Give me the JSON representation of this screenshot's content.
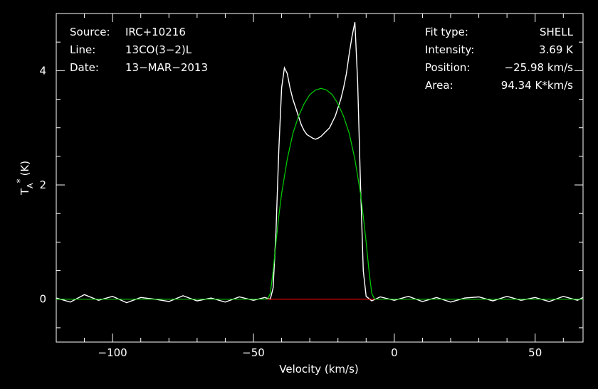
{
  "chart_data": {
    "type": "line",
    "xlabel": "Velocity (km/s)",
    "ylabel": "T",
    "ylabel_sub": "A",
    "ylabel_sup": "*",
    "ylabel_unit": "(K)",
    "xlim": [
      -120,
      67
    ],
    "ylim": [
      -0.75,
      5.0
    ],
    "xticks": [
      -100,
      -50,
      0,
      50
    ],
    "yticks": [
      0,
      2,
      4
    ],
    "x_tick_labels": [
      "−100",
      "−50",
      "0",
      "50"
    ],
    "y_tick_labels": [
      "0",
      "2",
      "4"
    ],
    "grid": false,
    "info_left": [
      {
        "label": "Source:",
        "value": "IRC+10216"
      },
      {
        "label": "Line:",
        "value": "13CO(3−2)L"
      },
      {
        "label": "Date:",
        "value": "13−MAR−2013"
      }
    ],
    "info_right": [
      {
        "label": "Fit type:",
        "value": "SHELL"
      },
      {
        "label": "Intensity:",
        "value": "3.69 K"
      },
      {
        "label": "Position:",
        "value": "−25.98 km/s"
      },
      {
        "label": "Area:",
        "value": "94.34 K*km/s"
      }
    ],
    "series": [
      {
        "color": "#ffffff",
        "points": [
          [
            -120,
            0.02
          ],
          [
            -115,
            -0.05
          ],
          [
            -110,
            0.08
          ],
          [
            -105,
            -0.02
          ],
          [
            -100,
            0.05
          ],
          [
            -95,
            -0.06
          ],
          [
            -90,
            0.03
          ],
          [
            -85,
            0.0
          ],
          [
            -80,
            -0.04
          ],
          [
            -75,
            0.06
          ],
          [
            -70,
            -0.03
          ],
          [
            -65,
            0.02
          ],
          [
            -60,
            -0.05
          ],
          [
            -55,
            0.04
          ],
          [
            -50,
            -0.02
          ],
          [
            -46,
            0.03
          ],
          [
            -44,
            0.0
          ],
          [
            -43,
            0.2
          ],
          [
            -42,
            1.2
          ],
          [
            -41,
            2.6
          ],
          [
            -40,
            3.7
          ],
          [
            -39,
            4.05
          ],
          [
            -38,
            3.95
          ],
          [
            -37,
            3.7
          ],
          [
            -36,
            3.5
          ],
          [
            -35,
            3.35
          ],
          [
            -34,
            3.2
          ],
          [
            -33,
            3.05
          ],
          [
            -32,
            2.95
          ],
          [
            -31,
            2.88
          ],
          [
            -30,
            2.85
          ],
          [
            -29,
            2.82
          ],
          [
            -28,
            2.8
          ],
          [
            -27,
            2.82
          ],
          [
            -26,
            2.85
          ],
          [
            -25,
            2.9
          ],
          [
            -24,
            2.95
          ],
          [
            -23,
            3.0
          ],
          [
            -22,
            3.1
          ],
          [
            -21,
            3.2
          ],
          [
            -20,
            3.35
          ],
          [
            -19,
            3.5
          ],
          [
            -18,
            3.7
          ],
          [
            -17,
            3.95
          ],
          [
            -16,
            4.3
          ],
          [
            -15,
            4.6
          ],
          [
            -14,
            4.85
          ],
          [
            -13,
            3.8
          ],
          [
            -12,
            2.0
          ],
          [
            -11,
            0.5
          ],
          [
            -10,
            0.05
          ],
          [
            -8,
            -0.03
          ],
          [
            -5,
            0.04
          ],
          [
            0,
            -0.02
          ],
          [
            5,
            0.05
          ],
          [
            10,
            -0.04
          ],
          [
            15,
            0.03
          ],
          [
            20,
            -0.05
          ],
          [
            25,
            0.02
          ],
          [
            30,
            0.04
          ],
          [
            35,
            -0.03
          ],
          [
            40,
            0.05
          ],
          [
            45,
            -0.02
          ],
          [
            50,
            0.03
          ],
          [
            55,
            -0.04
          ],
          [
            60,
            0.05
          ],
          [
            65,
            -0.02
          ],
          [
            67,
            0.03
          ]
        ]
      },
      {
        "color": "#00d000",
        "points": [
          [
            -120,
            0
          ],
          [
            -45,
            0
          ],
          [
            -44,
            0.1
          ],
          [
            -43,
            0.5
          ],
          [
            -42,
            1.0
          ],
          [
            -41,
            1.45
          ],
          [
            -40,
            1.85
          ],
          [
            -38,
            2.45
          ],
          [
            -36,
            2.9
          ],
          [
            -34,
            3.2
          ],
          [
            -32,
            3.42
          ],
          [
            -30,
            3.58
          ],
          [
            -28,
            3.66
          ],
          [
            -26,
            3.69
          ],
          [
            -24,
            3.66
          ],
          [
            -22,
            3.58
          ],
          [
            -20,
            3.42
          ],
          [
            -18,
            3.2
          ],
          [
            -16,
            2.9
          ],
          [
            -14,
            2.45
          ],
          [
            -12,
            1.85
          ],
          [
            -11,
            1.45
          ],
          [
            -10,
            1.0
          ],
          [
            -9,
            0.5
          ],
          [
            -8,
            0.1
          ],
          [
            -7,
            0
          ],
          [
            67,
            0
          ]
        ]
      },
      {
        "color": "#ff0000",
        "points": [
          [
            -45,
            0
          ],
          [
            -7,
            0
          ]
        ]
      }
    ]
  }
}
